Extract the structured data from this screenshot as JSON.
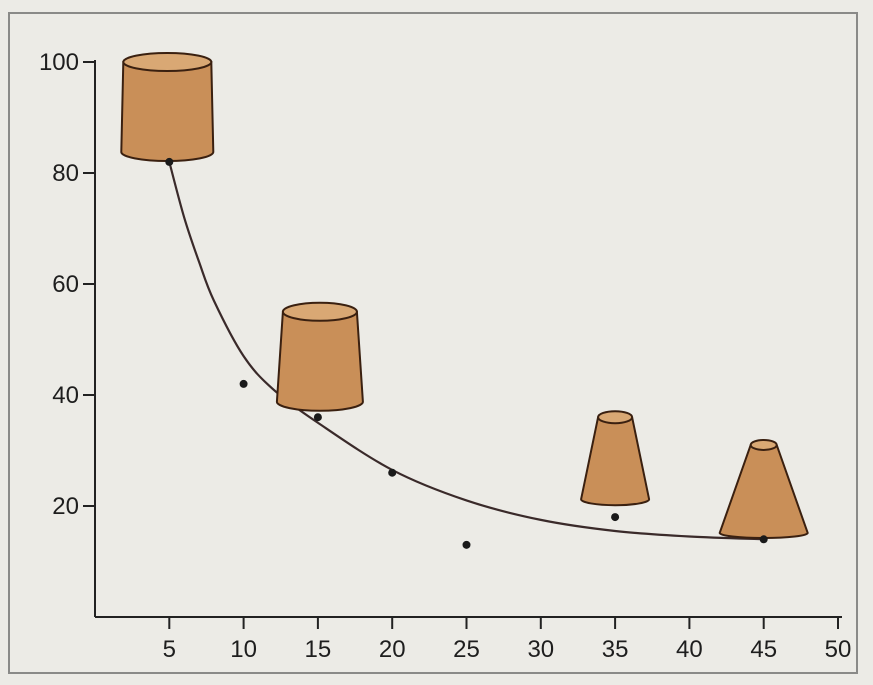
{
  "chart_data": {
    "type": "scatter",
    "title": "",
    "xlabel": "",
    "ylabel": "",
    "xlim": [
      0,
      50
    ],
    "ylim": [
      0,
      100
    ],
    "x_ticks": [
      5,
      10,
      15,
      20,
      25,
      30,
      35,
      40,
      45,
      50
    ],
    "y_ticks": [
      20,
      40,
      60,
      80,
      100
    ],
    "grid": false,
    "legend": "none",
    "points": [
      {
        "x": 5,
        "y": 82
      },
      {
        "x": 10,
        "y": 42
      },
      {
        "x": 15,
        "y": 36
      },
      {
        "x": 20,
        "y": 26
      },
      {
        "x": 25,
        "y": 13
      },
      {
        "x": 35,
        "y": 18
      },
      {
        "x": 45,
        "y": 14
      }
    ],
    "fit_curve": [
      {
        "x": 5,
        "y": 82
      },
      {
        "x": 6,
        "y": 72
      },
      {
        "x": 7,
        "y": 64
      },
      {
        "x": 8,
        "y": 57
      },
      {
        "x": 10,
        "y": 47
      },
      {
        "x": 12,
        "y": 41
      },
      {
        "x": 15,
        "y": 35
      },
      {
        "x": 20,
        "y": 26.5
      },
      {
        "x": 25,
        "y": 21
      },
      {
        "x": 30,
        "y": 17.5
      },
      {
        "x": 35,
        "y": 15.5
      },
      {
        "x": 40,
        "y": 14.5
      },
      {
        "x": 45,
        "y": 14
      }
    ],
    "annotations": [
      {
        "shape": "frustum",
        "x": 5,
        "y": 100,
        "shape_label": "wide-short-cup"
      },
      {
        "shape": "frustum",
        "x": 15,
        "y": 55,
        "shape_label": "medium-cup"
      },
      {
        "shape": "frustum",
        "x": 35,
        "y": 36,
        "shape_label": "tall-narrow-cone"
      },
      {
        "shape": "frustum",
        "x": 45,
        "y": 31,
        "shape_label": "tallest-narrow-cone"
      }
    ],
    "colors": {
      "shape_fill": "#c98f58",
      "shape_top": "#d9a874",
      "shape_edge": "#3a2010",
      "curve": "#3a2a2a",
      "axis": "#222222",
      "point": "#1a1a1a"
    }
  }
}
